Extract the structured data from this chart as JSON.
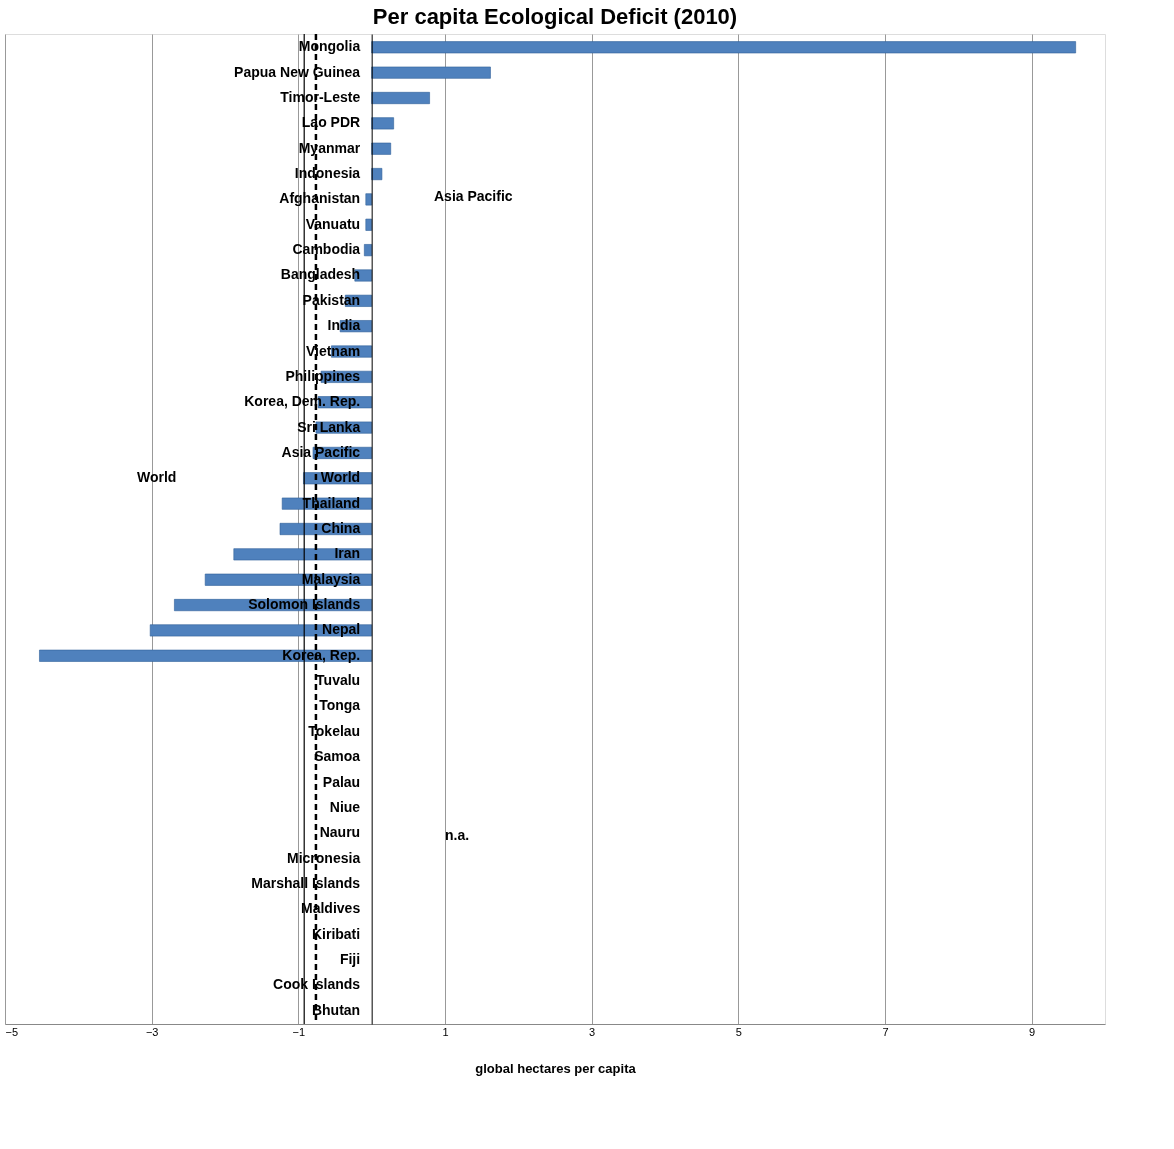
{
  "chart_data": {
    "type": "bar",
    "orientation": "horizontal",
    "title": "Per capita Ecological Deficit (2010)",
    "xlabel": "global hectares per capita",
    "categories": [
      "Mongolia",
      "Papua New Guinea",
      "Timor-Leste",
      "Lao PDR",
      "Myanmar",
      "Indonesia",
      "Afghanistan",
      "Vanuatu",
      "Cambodia",
      "Bangladesh",
      "Pakistan",
      "India",
      "Vietnam",
      "Philippines",
      "Korea, Dem. Rep.",
      "Sri Lanka",
      "Asia Pacific",
      "World",
      "Thailand",
      "China",
      "Iran",
      "Malaysia",
      "Solomon Islands",
      "Nepal",
      "Korea, Rep.",
      "Tuvalu",
      "Tonga",
      "Tokelau",
      "Samoa",
      "Palau",
      "Niue",
      "Nauru",
      "Micronesia",
      "Marshall Islands",
      "Maldives",
      "Kiribati",
      "Fiji",
      "Cook Islands",
      "Bhutan"
    ],
    "values": [
      9.6,
      1.62,
      0.79,
      0.3,
      0.26,
      0.14,
      -0.08,
      -0.08,
      -0.1,
      -0.23,
      -0.36,
      -0.43,
      -0.55,
      -0.69,
      -0.73,
      -0.76,
      -0.8,
      -0.93,
      -1.22,
      -1.25,
      -1.88,
      -2.27,
      -2.69,
      -3.02,
      -4.53,
      null,
      null,
      null,
      null,
      null,
      null,
      null,
      null,
      null,
      null,
      null,
      null,
      null,
      null
    ],
    "color": "#4f81bd",
    "xlim": [
      -5,
      10
    ],
    "xticks": [
      -5,
      -3,
      -1,
      1,
      3,
      5,
      7,
      9
    ],
    "grid": "x",
    "ref_lines": [
      {
        "axis": "x",
        "value": -0.92,
        "color": "#000000",
        "line_style": "solid"
      },
      {
        "axis": "x",
        "value": -0.76,
        "color": "#000000",
        "line_style": "dashed"
      }
    ],
    "annotations": [
      "World",
      "Asia Pacific",
      "n.a."
    ]
  }
}
